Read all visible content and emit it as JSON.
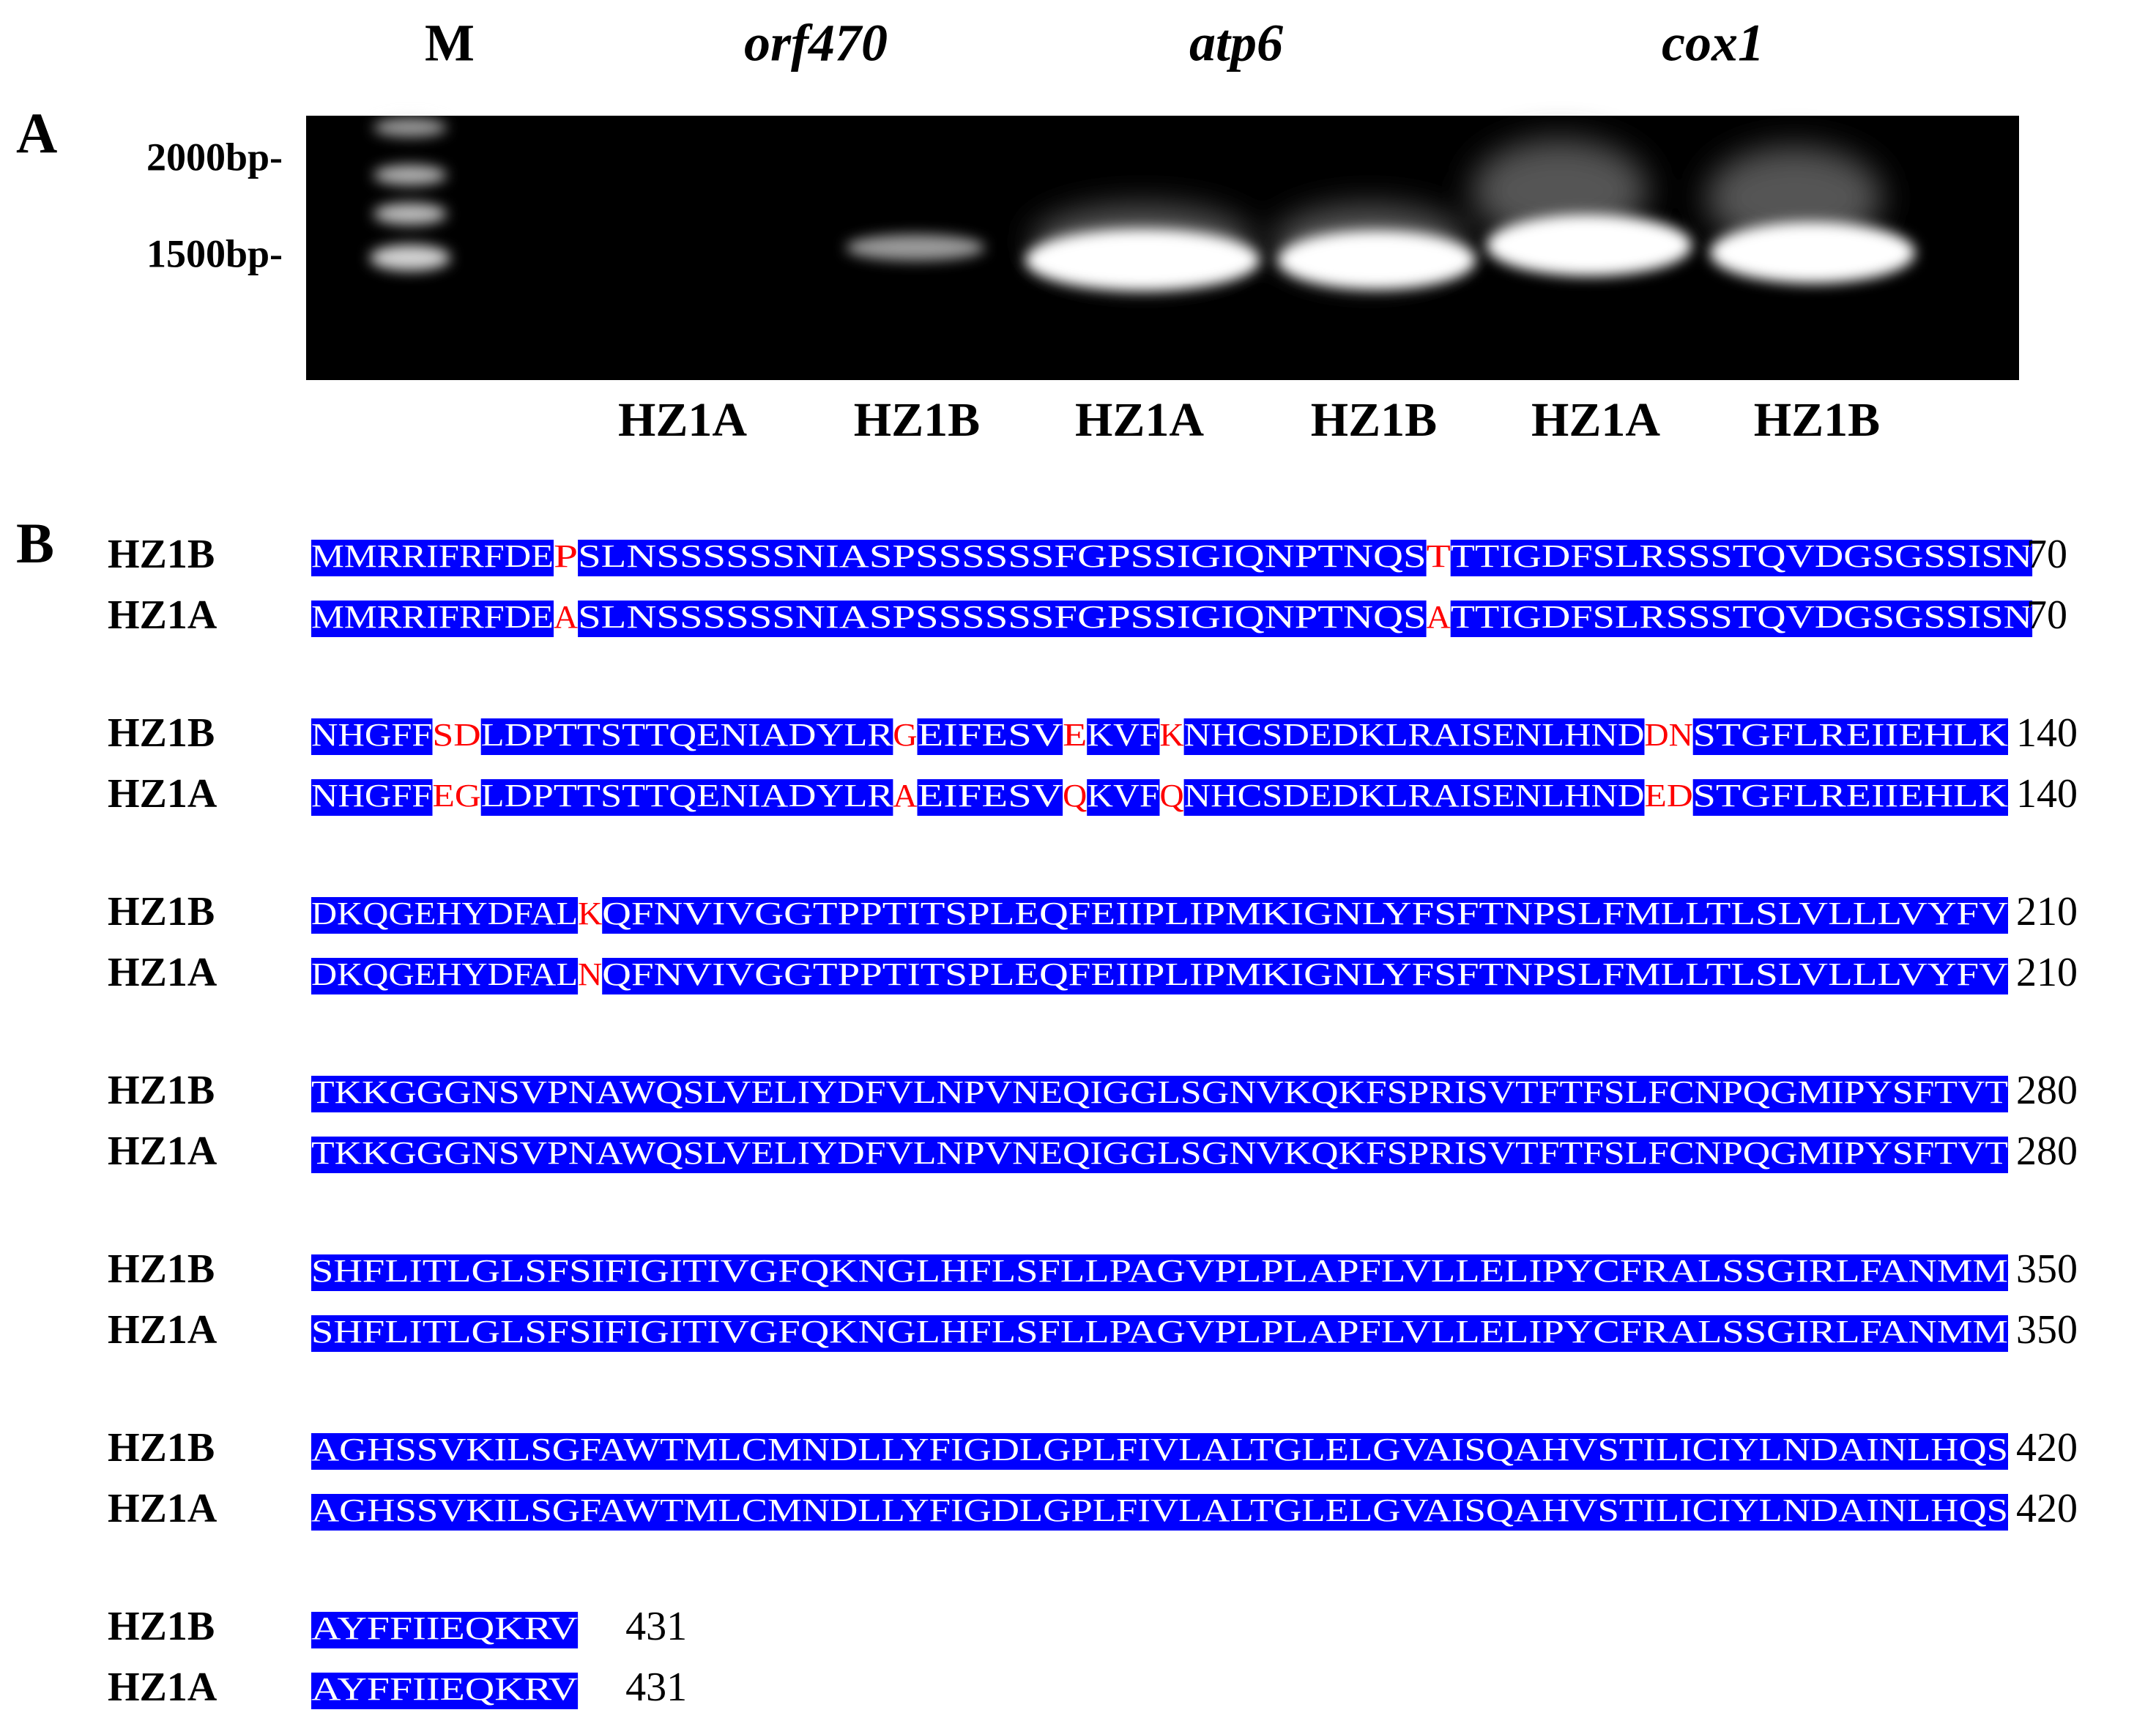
{
  "panel_a": {
    "label": "A",
    "marker_label": "M",
    "genes": [
      "orf470",
      "atp6",
      "cox1"
    ],
    "size_markers": [
      "2000bp-",
      "1500bp-"
    ],
    "lanes": [
      "HZ1A",
      "HZ1B",
      "HZ1A",
      "HZ1B",
      "HZ1A",
      "HZ1B"
    ]
  },
  "panel_b": {
    "label": "B",
    "blocks": [
      {
        "rows": [
          {
            "name": "HZ1B",
            "segments": [
              "MMRRIFRFDE",
              "P",
              "SLNSSSSSSNIASPSSSSSSFGPSSIGIQNPTNQS",
              "T",
              "TTIGDFSLRSSSTQVDGSGSSISN"
            ],
            "end": 70
          },
          {
            "name": "HZ1A",
            "segments": [
              "MMRRIFRFDE",
              "A",
              "SLNSSSSSSNIASPSSSSSSFGPSSIGIQNPTNQS",
              "A",
              "TTIGDFSLRSSSTQVDGSGSSISN"
            ],
            "end": 70
          }
        ]
      },
      {
        "rows": [
          {
            "name": "HZ1B",
            "segments": [
              "NHGFF",
              "SD",
              "LDPTTSTTQENIADYLR",
              "G",
              "EIFESV",
              "E",
              "KVF",
              "K",
              "NHCSDEDKLRAISENLHND",
              "DN",
              "STGFLREIIEHLK"
            ],
            "end": 140
          },
          {
            "name": "HZ1A",
            "segments": [
              "NHGFF",
              "EG",
              "LDPTTSTTQENIADYLR",
              "A",
              "EIFESV",
              "Q",
              "KVF",
              "Q",
              "NHCSDEDKLRAISENLHND",
              "ED",
              "STGFLREIIEHLK"
            ],
            "end": 140
          }
        ]
      },
      {
        "rows": [
          {
            "name": "HZ1B",
            "segments": [
              "DKQGEHYDFAL",
              "K",
              "QFNVIVGGTPPTITSPLEQFEIIPLIPMKIGNLYFSFTNPSLFMLLTLSLVLLLVYFV"
            ],
            "end": 210
          },
          {
            "name": "HZ1A",
            "segments": [
              "DKQGEHYDFAL",
              "N",
              "QFNVIVGGTPPTITSPLEQFEIIPLIPMKIGNLYFSFTNPSLFMLLTLSLVLLLVYFV"
            ],
            "end": 210
          }
        ]
      },
      {
        "rows": [
          {
            "name": "HZ1B",
            "segments": [
              "TKKGGGNSVPNAWQSLVELIYDFVLNPVNEQIGGLSGNVKQKFSPRISVTFTFSLFCNPQGMIPYSFTVT"
            ],
            "end": 280
          },
          {
            "name": "HZ1A",
            "segments": [
              "TKKGGGNSVPNAWQSLVELIYDFVLNPVNEQIGGLSGNVKQKFSPRISVTFTFSLFCNPQGMIPYSFTVT"
            ],
            "end": 280
          }
        ]
      },
      {
        "rows": [
          {
            "name": "HZ1B",
            "segments": [
              "SHFLITLGLSFSIFIGITIVGFQKNGLHFLSFLLPAGVPLPLAPFLVLLELIPYCFRALSSGIRLFANMM"
            ],
            "end": 350
          },
          {
            "name": "HZ1A",
            "segments": [
              "SHFLITLGLSFSIFIGITIVGFQKNGLHFLSFLLPAGVPLPLAPFLVLLELIPYCFRALSSGIRLFANMM"
            ],
            "end": 350
          }
        ]
      },
      {
        "rows": [
          {
            "name": "HZ1B",
            "segments": [
              "AGHSSVKILSGFAWTMLCMNDLLYFIGDLGPLFIVLALTGLELGVAISQAHVSTILICIYLNDAINLHQS"
            ],
            "end": 420
          },
          {
            "name": "HZ1A",
            "segments": [
              "AGHSSVKILSGFAWTMLCMNDLLYFIGDLGPLFIVLALTGLELGVAISQAHVSTILICIYLNDAINLHQS"
            ],
            "end": 420
          }
        ]
      },
      {
        "rows": [
          {
            "name": "HZ1B",
            "segments": [
              "AYFFIIEQKRV"
            ],
            "end": 431
          },
          {
            "name": "HZ1A",
            "segments": [
              "AYFFIIEQKRV"
            ],
            "end": 431
          }
        ]
      }
    ]
  }
}
